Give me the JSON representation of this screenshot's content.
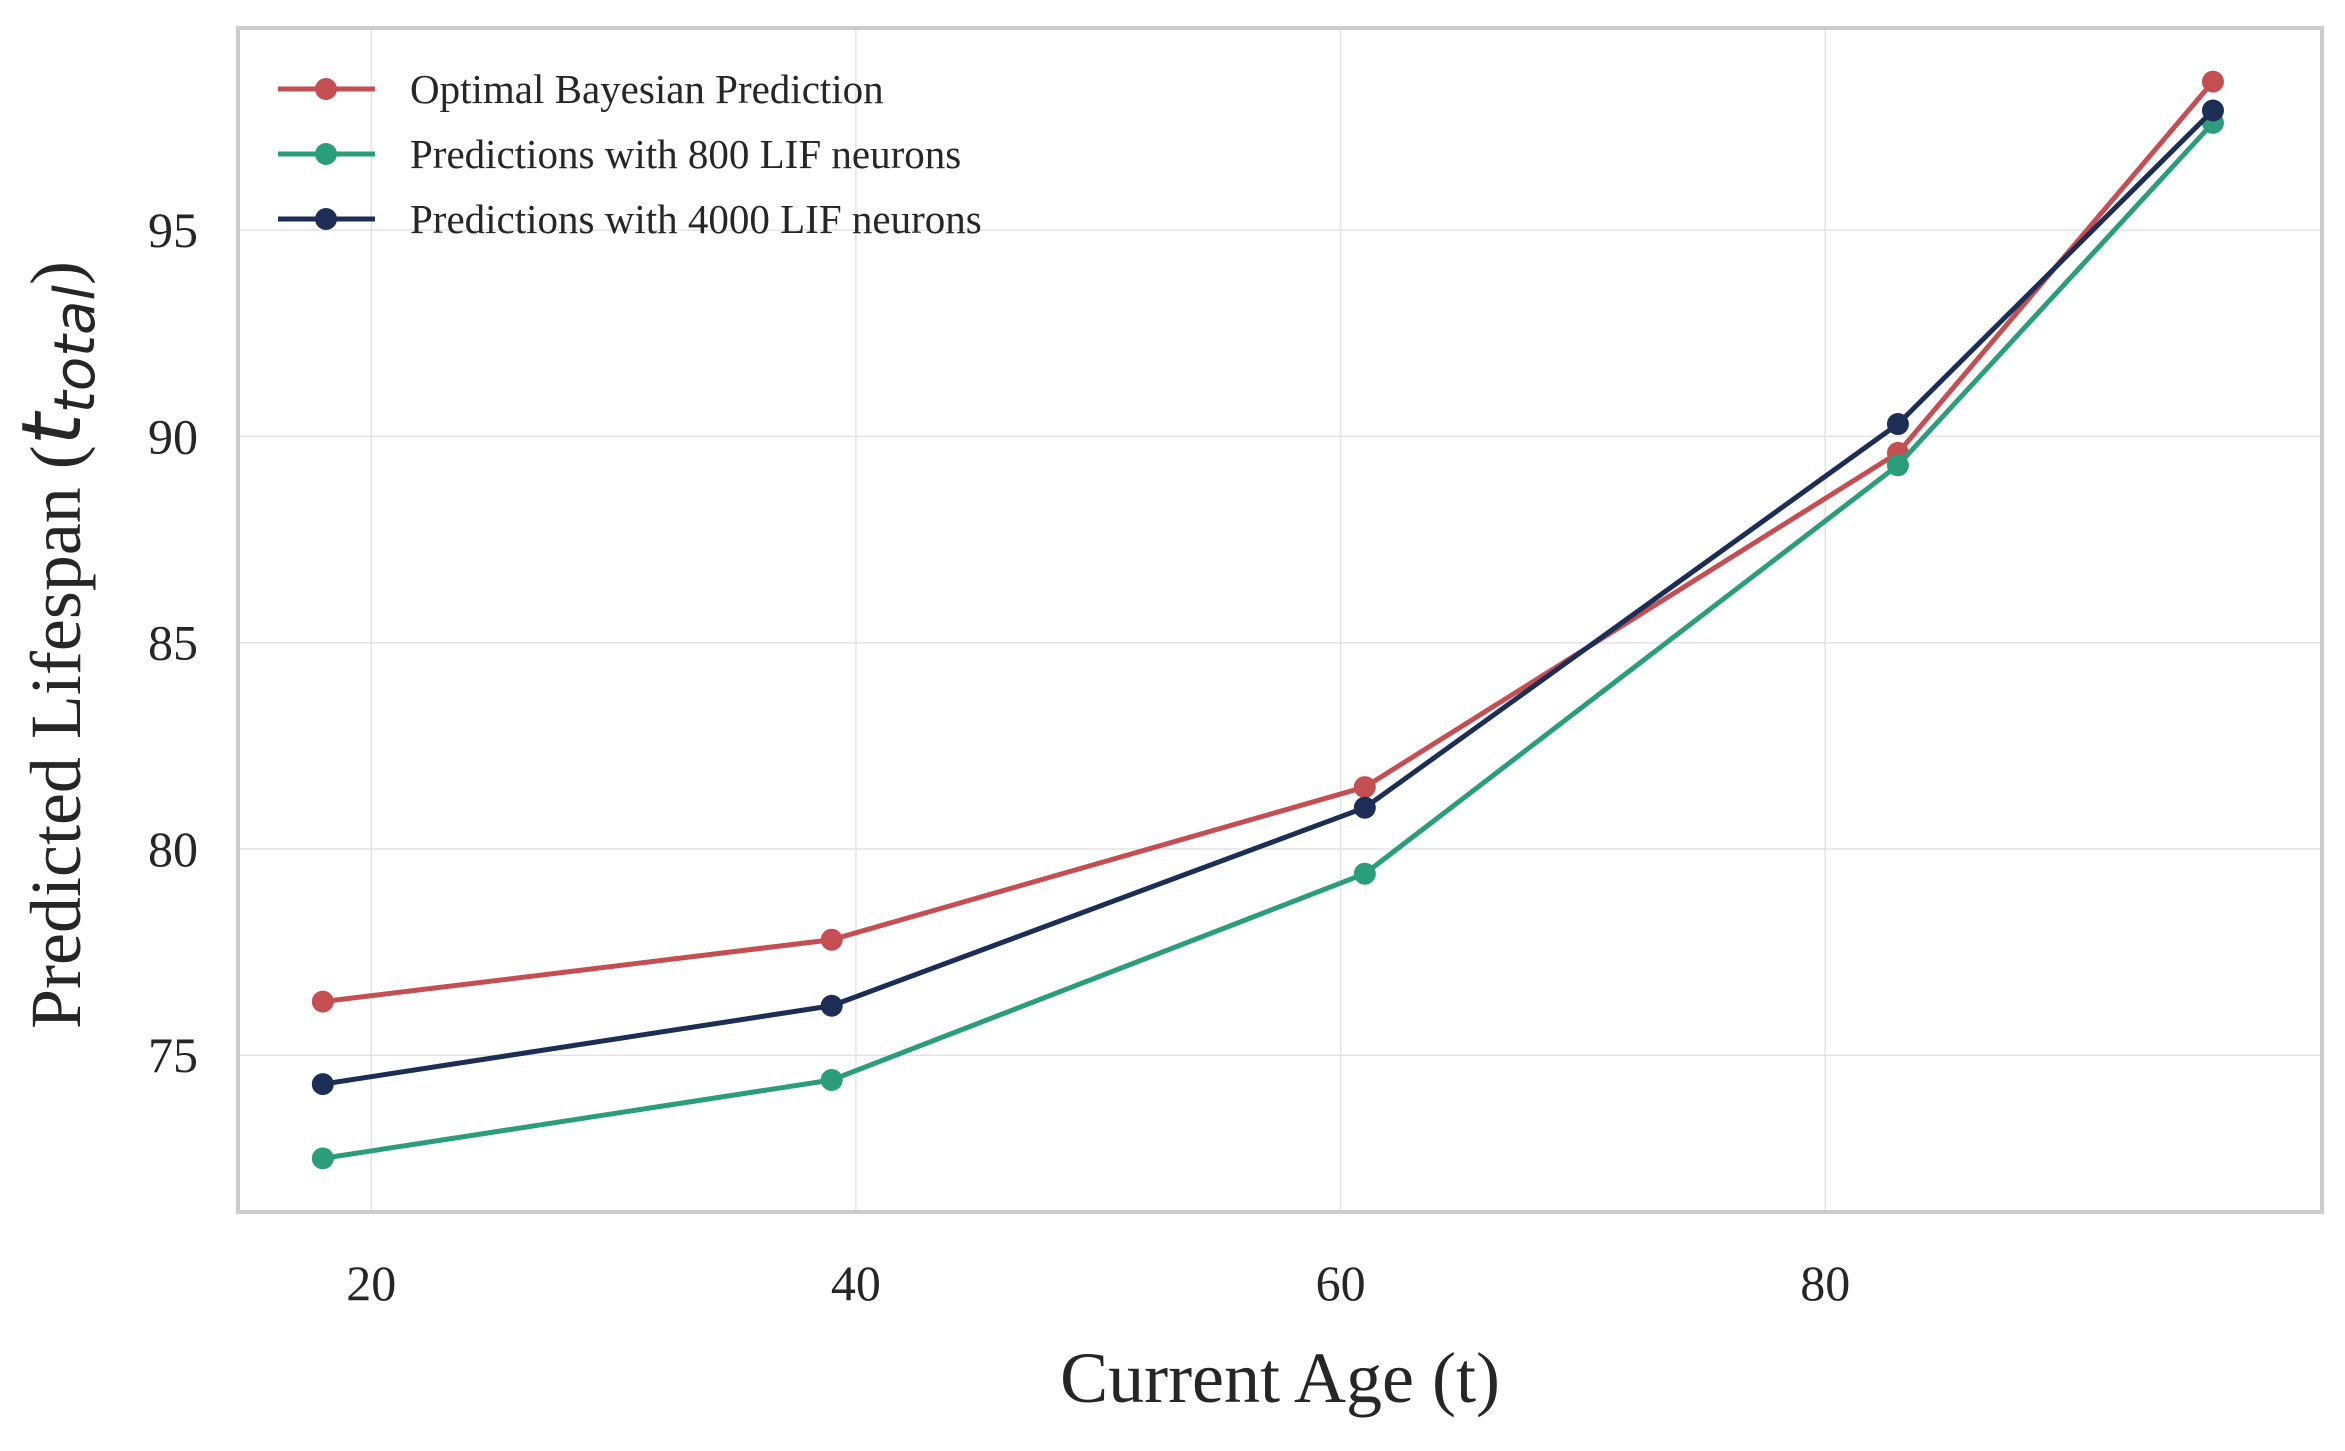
{
  "chart_data": {
    "type": "line",
    "title": "",
    "xlabel": "Current Age (t)",
    "ylabel": {
      "main": "Predicted Lifespan (",
      "var": "t",
      "sub": "total",
      "close": ")"
    },
    "xlim": [
      14.5,
      100.5
    ],
    "ylim": [
      71.2,
      99.9
    ],
    "xticks": [
      20,
      40,
      60,
      80
    ],
    "yticks": [
      75,
      80,
      85,
      90,
      95
    ],
    "grid": true,
    "legend_position": "top-left",
    "x": [
      18,
      39,
      61,
      83,
      96
    ],
    "series": [
      {
        "name": "Optimal Bayesian Prediction",
        "color": "#c44e52",
        "values": [
          76.3,
          77.8,
          81.5,
          89.6,
          98.6
        ]
      },
      {
        "name": "Predictions with 800 LIF neurons",
        "color": "#2a9d7b",
        "values": [
          72.5,
          74.4,
          79.4,
          89.3,
          97.6
        ]
      },
      {
        "name": "Predictions with 4000 LIF neurons",
        "color": "#1c2e55",
        "values": [
          74.3,
          76.2,
          81.0,
          90.3,
          97.9
        ]
      }
    ]
  }
}
